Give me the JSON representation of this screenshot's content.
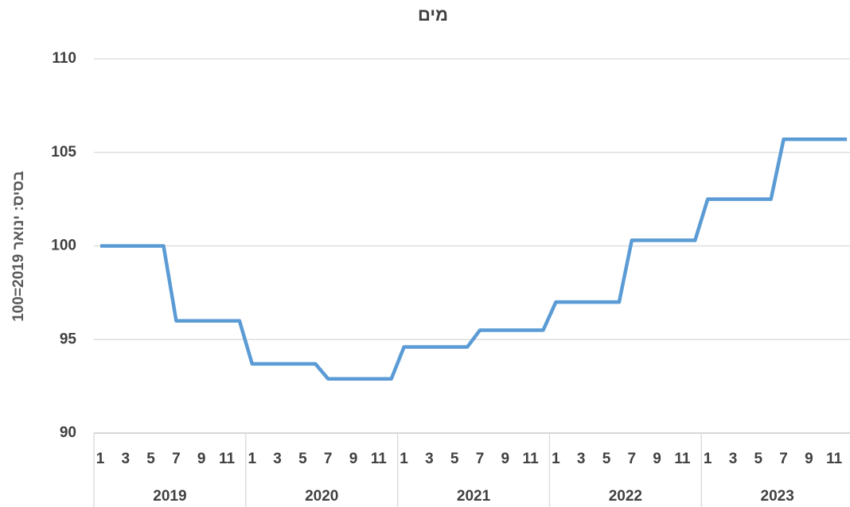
{
  "chart_data": {
    "type": "line",
    "title": "מים",
    "y_label": "בסיס: ינואר 2019=100",
    "categories": [
      1,
      null,
      3,
      null,
      5,
      null,
      7,
      null,
      9,
      null,
      11,
      null,
      1,
      null,
      3,
      null,
      5,
      null,
      7,
      null,
      9,
      null,
      11,
      null,
      1,
      null,
      3,
      null,
      5,
      null,
      7,
      null,
      9,
      null,
      11,
      null,
      1,
      null,
      3,
      null,
      5,
      null,
      7,
      null,
      9,
      null,
      11,
      null,
      1,
      null,
      3,
      null,
      5,
      null,
      7,
      null,
      9,
      null,
      11,
      null
    ],
    "groups": [
      "2019",
      "2020",
      "2021",
      "2022",
      "2023"
    ],
    "values": [
      100,
      100,
      100,
      100,
      100,
      100,
      96,
      96,
      96,
      96,
      96,
      96,
      93.7,
      93.7,
      93.7,
      93.7,
      93.7,
      93.7,
      92.9,
      92.9,
      92.9,
      92.9,
      92.9,
      92.9,
      94.6,
      94.6,
      94.6,
      94.6,
      94.6,
      94.6,
      95.5,
      95.5,
      95.5,
      95.5,
      95.5,
      95.5,
      97,
      97,
      97,
      97,
      97,
      97,
      100.3,
      100.3,
      100.3,
      100.3,
      100.3,
      100.3,
      102.5,
      102.5,
      102.5,
      102.5,
      102.5,
      102.5,
      105.7,
      105.7,
      105.7,
      105.7,
      105.7,
      105.7
    ],
    "color": "#5b9bd5",
    "ylim": [
      90,
      110
    ],
    "yticks": [
      90,
      95,
      100,
      105,
      110
    ],
    "grid": true
  }
}
